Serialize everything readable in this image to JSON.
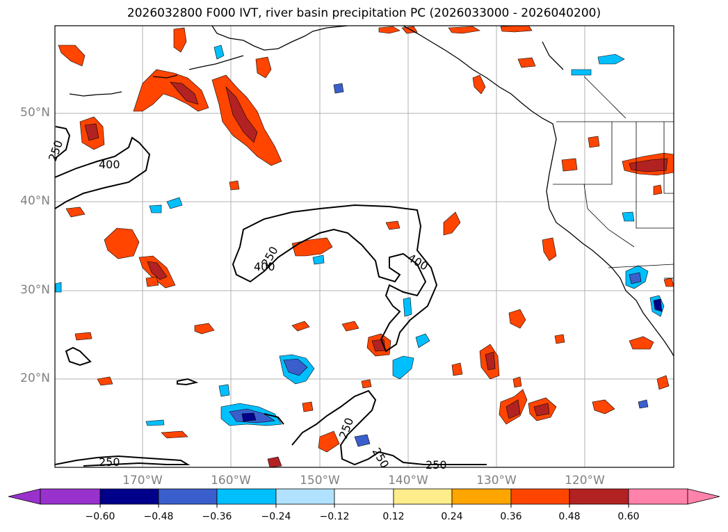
{
  "title": "2026032800 F000 IVT, river basin precipitation PC (2026033000 - 2026040200)",
  "map": {
    "lat_labels": [
      "50°N",
      "40°N",
      "30°N",
      "20°N"
    ],
    "lon_labels": [
      "170°W",
      "160°W",
      "150°W",
      "140°W",
      "130°W",
      "120°W"
    ],
    "contour_labels": [
      "400",
      "400",
      "400",
      "250",
      "250",
      "250",
      "250",
      "250",
      "250"
    ]
  },
  "colorbar": {
    "ticks": [
      "−0.60",
      "−0.48",
      "−0.36",
      "−0.24",
      "−0.12",
      "0.12",
      "0.24",
      "0.36",
      "0.48",
      "0.60"
    ],
    "colors": [
      "#9932CC",
      "#00008B",
      "#3A5FCD",
      "#00BFFF",
      "#B0E2FF",
      "#FFFFFF",
      "#FFEC8B",
      "#FFA500",
      "#FF4500",
      "#B22222",
      "#FF82AB",
      "#FF82AB"
    ]
  },
  "colors": {
    "positive_core": "#B22222",
    "positive_mid": "#FF4500",
    "positive_edge": "#FFA500",
    "positive_rim": "#FFEC8B",
    "negative_mid": "#3A5FCD",
    "negative_light": "#00BFFF",
    "negative_core": "#00008B"
  }
}
